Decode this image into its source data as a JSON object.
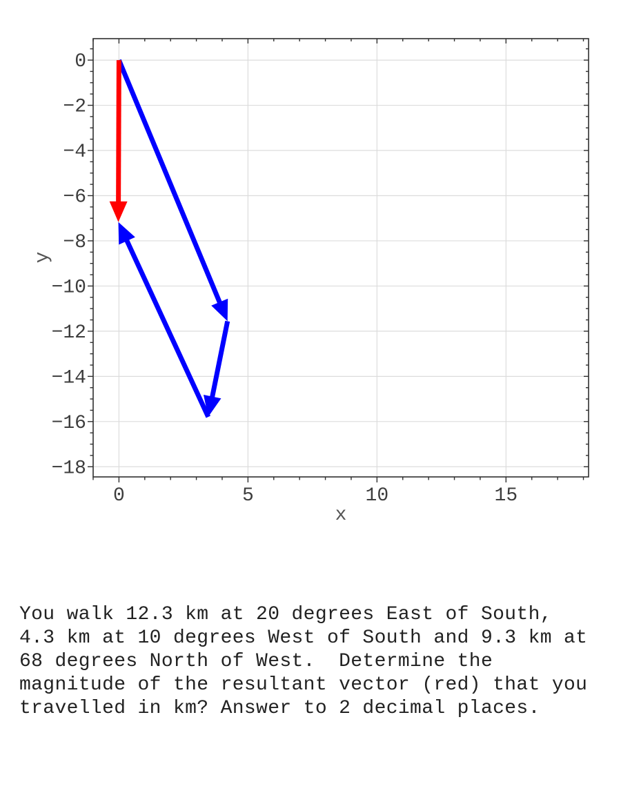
{
  "chart_data": {
    "type": "quiver",
    "title": "",
    "xlabel": "x",
    "ylabel": "y",
    "xlim": [
      -1.0,
      18.2
    ],
    "ylim": [
      -18.45,
      0.95
    ],
    "grid": true,
    "legend": false,
    "x_ticks": [
      {
        "v": 0,
        "label": "0"
      },
      {
        "v": 5,
        "label": "5"
      },
      {
        "v": 10,
        "label": "10"
      },
      {
        "v": 15,
        "label": "15"
      }
    ],
    "y_ticks": [
      {
        "v": 0,
        "label": "0"
      },
      {
        "v": -2,
        "label": "−2"
      },
      {
        "v": -4,
        "label": "−4"
      },
      {
        "v": -6,
        "label": "−6"
      },
      {
        "v": -8,
        "label": "−8"
      },
      {
        "v": -10,
        "label": "−10"
      },
      {
        "v": -12,
        "label": "−12"
      },
      {
        "v": -14,
        "label": "−14"
      },
      {
        "v": -16,
        "label": "−16"
      },
      {
        "v": -18,
        "label": "−18"
      }
    ],
    "x_minor_step": 1,
    "y_minor_step": 0.5,
    "colors": {
      "blue_vector": "#0000ff",
      "red_resultant": "#ff0000",
      "grid": "#dcdcdc",
      "frame": "#2e2e2e",
      "tick_label": "#3d3d3d",
      "axis_label": "#545454"
    },
    "vectors": {
      "blue_path": [
        {
          "from": [
            0,
            0
          ],
          "to": [
            4.207,
            -11.558
          ]
        },
        {
          "from": [
            4.207,
            -11.558
          ],
          "to": [
            3.46,
            -15.793
          ]
        },
        {
          "from": [
            3.46,
            -15.793
          ],
          "to": [
            -0.024,
            -7.17
          ]
        }
      ],
      "red_resultant": {
        "from": [
          0,
          0
        ],
        "to": [
          -0.024,
          -7.17
        ]
      }
    }
  },
  "problem_text": {
    "lines": [
      "You walk 12.3 km at 20 degrees East of South,",
      "4.3 km at 10 degrees West of South and 9.3 km at",
      "68 degrees North of West.  Determine the",
      "magnitude of the resultant vector (red) that you",
      "travelled in km? Answer to 2 decimal places."
    ]
  }
}
